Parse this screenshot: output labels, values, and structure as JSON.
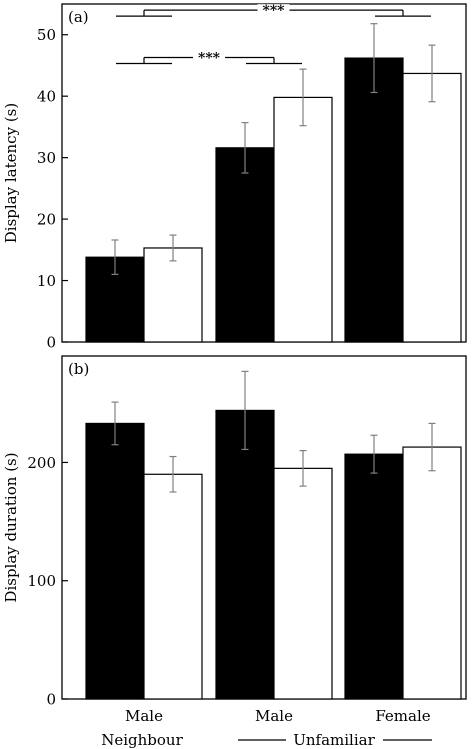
{
  "chart_data": [
    {
      "panel_label": "(a)",
      "type": "bar",
      "ylabel": "Display latency (s)",
      "ylim": [
        0,
        55
      ],
      "yticks": [
        0,
        10,
        20,
        30,
        40,
        50
      ],
      "categories": [
        "Male",
        "Male",
        "Female"
      ],
      "series": [
        {
          "fill": "#000000",
          "values": [
            13.8,
            31.6,
            46.2
          ],
          "err": [
            2.8,
            4.1,
            5.6
          ]
        },
        {
          "fill": "#ffffff",
          "values": [
            15.3,
            39.8,
            43.7
          ],
          "err": [
            2.1,
            4.6,
            4.6
          ]
        }
      ],
      "annotations": [
        {
          "text": "***",
          "from_group": 0,
          "to_group": 2,
          "y": 54.0
        },
        {
          "text": "***",
          "from_group": 0,
          "to_group": 1,
          "y": 46.3
        }
      ]
    },
    {
      "panel_label": "(b)",
      "type": "bar",
      "ylabel": "Display duration (s)",
      "ylim": [
        0,
        290
      ],
      "yticks": [
        0,
        100,
        200
      ],
      "categories": [
        "Male",
        "Male",
        "Female"
      ],
      "series": [
        {
          "fill": "#000000",
          "values": [
            233,
            244,
            207
          ],
          "err": [
            18,
            33,
            16
          ]
        },
        {
          "fill": "#ffffff",
          "values": [
            190,
            195,
            213
          ],
          "err": [
            15,
            15,
            20
          ]
        }
      ]
    }
  ],
  "group_labels": {
    "neighbour": "Neighbour",
    "unfamiliar": "Unfamiliar"
  }
}
